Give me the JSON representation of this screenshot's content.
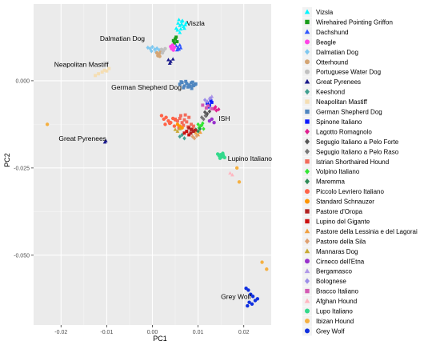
{
  "chart_data": {
    "type": "scatter",
    "xlabel": "PC1",
    "ylabel": "PC2",
    "xlim": [
      -0.026,
      0.026
    ],
    "ylim": [
      -0.07,
      0.022
    ],
    "x_ticks": [
      -0.02,
      -0.01,
      0.0,
      0.01,
      0.02
    ],
    "x_tick_labels": [
      "-0.02",
      "-0.01",
      "0.00",
      "0.01",
      "0.02"
    ],
    "y_ticks": [
      0.0,
      -0.025,
      -0.05
    ],
    "y_tick_labels": [
      "0.000",
      "-0.025",
      "-0.050"
    ],
    "grid": true,
    "legend_position": "right",
    "series": [
      {
        "name": "Vizsla",
        "color": "#00f5ff",
        "shape": "triangle",
        "x": [
          0.0052,
          0.0056,
          0.006,
          0.0064,
          0.0068,
          0.0072,
          0.0055,
          0.0062,
          0.007,
          0.0058,
          0.0066,
          0.006,
          0.0074,
          0.0064
        ],
        "y": [
          0.015,
          0.0165,
          0.0158,
          0.017,
          0.0155,
          0.016,
          0.0145,
          0.0148,
          0.015,
          0.0175,
          0.0172,
          0.0138,
          0.0166,
          0.0162
        ]
      },
      {
        "name": "Wirehaired Pointing Griffon",
        "color": "#1a9d1a",
        "shape": "square",
        "x": [
          0.0046,
          0.005,
          0.0054,
          0.0048,
          0.0052
        ],
        "y": [
          0.0115,
          0.012,
          0.0112,
          0.0108,
          0.0125
        ]
      },
      {
        "name": "Dachshund",
        "color": "#2f57ff",
        "shape": "triangle",
        "x": [
          0.0052,
          0.0056,
          0.006,
          0.0054,
          0.0058,
          0.0062
        ],
        "y": [
          0.01,
          0.0095,
          0.0102,
          0.0088,
          0.009,
          0.0094
        ]
      },
      {
        "name": "Beagle",
        "color": "#ff44e6",
        "shape": "circle",
        "x": [
          0.004,
          0.0044,
          0.0048,
          0.0042,
          0.0046
        ],
        "y": [
          0.0098,
          0.0102,
          0.0096,
          0.0092,
          0.0088
        ]
      },
      {
        "name": "Dalmatian Dog",
        "color": "#7ec8f0",
        "shape": "diamond",
        "x": [
          -0.001,
          -0.0005,
          0.0,
          0.0005,
          0.001,
          0.0015,
          -0.0002,
          0.0008
        ],
        "y": [
          0.0095,
          0.0092,
          0.0097,
          0.009,
          0.0093,
          0.0088,
          0.0085,
          0.0082
        ]
      },
      {
        "name": "Otterhound",
        "color": "#d4a574",
        "shape": "circle",
        "x": [
          0.001,
          0.0014,
          0.0018,
          0.0012,
          0.0016
        ],
        "y": [
          0.008,
          0.0076,
          0.0082,
          0.0072,
          0.007
        ]
      },
      {
        "name": "Portuguese Water Dog",
        "color": "#c0c0c0",
        "shape": "circle",
        "x": [
          0.002,
          0.0024,
          0.0028,
          0.0022
        ],
        "y": [
          0.009,
          0.0086,
          0.0092,
          0.008
        ]
      },
      {
        "name": "Great Pyrenees",
        "color": "#1a1a8c",
        "shape": "triangle",
        "x": [
          0.0035,
          0.004,
          0.0045,
          0.0038,
          -0.0102,
          -0.0104
        ],
        "y": [
          0.006,
          0.0055,
          0.0062,
          0.005,
          -0.0172,
          -0.0176
        ]
      },
      {
        "name": "Keeshond",
        "color": "#40a090",
        "shape": "diamond",
        "x": [
          0.006,
          0.0065,
          0.007
        ],
        "y": [
          -0.016,
          -0.0155,
          -0.0165
        ]
      },
      {
        "name": "Neapolitan Mastiff",
        "color": "#f5deb3",
        "shape": "square",
        "x": [
          -0.0125,
          -0.0118,
          -0.011,
          -0.0105,
          -0.0095,
          -0.01
        ],
        "y": [
          0.0015,
          0.002,
          0.0025,
          0.003,
          0.0035,
          0.0028
        ]
      },
      {
        "name": "German Shepherd Dog",
        "color": "#4f86c0",
        "shape": "square",
        "x": [
          0.006,
          0.0065,
          0.007,
          0.0075,
          0.008,
          0.0085,
          0.009,
          0.0095,
          0.0068,
          0.0078,
          0.0088,
          0.0063,
          0.0073,
          0.0083,
          0.0093,
          0.0086
        ],
        "y": [
          -0.001,
          -0.0005,
          -0.0015,
          -0.0008,
          -0.0012,
          -0.0006,
          -0.0014,
          -0.0009,
          -0.002,
          -0.0018,
          -0.0004,
          -0.0003,
          -0.0002,
          -0.0016,
          -0.0011,
          -0.0022
        ]
      },
      {
        "name": "Spinone Italiano",
        "color": "#0a1aff",
        "shape": "square",
        "x": [
          0.012,
          0.0125,
          0.013,
          0.0122,
          0.0128
        ],
        "y": [
          -0.0065,
          -0.007,
          -0.0062,
          -0.0075,
          -0.0058
        ]
      },
      {
        "name": "Lagotto Romagnolo",
        "color": "#e02090",
        "shape": "diamond",
        "x": [
          0.0135,
          0.014,
          0.0138,
          0.0145
        ],
        "y": [
          -0.008,
          -0.0085,
          -0.0075,
          -0.0082
        ]
      },
      {
        "name": "Segugio Italiano a Pelo Forte",
        "color": "#555555",
        "shape": "diamond",
        "x": [
          0.0115,
          0.012,
          0.0125,
          0.0118
        ],
        "y": [
          -0.009,
          -0.0095,
          -0.0088,
          -0.01
        ]
      },
      {
        "name": "Segugio Italiano a Pelo Raso",
        "color": "#777777",
        "shape": "diamond",
        "x": [
          0.0108,
          0.0112,
          0.0116
        ],
        "y": [
          -0.0105,
          -0.011,
          -0.01
        ]
      },
      {
        "name": "Istrian Shorthaired Hound",
        "color": "#f36b5b",
        "shape": "square",
        "x": [
          0.005,
          0.0055,
          0.006,
          0.0065,
          0.007,
          0.0075,
          0.008,
          0.0085,
          0.009,
          0.0058,
          0.0068,
          0.0078,
          0.0088,
          0.0062,
          0.0072
        ],
        "y": [
          -0.011,
          -0.0115,
          -0.0108,
          -0.012,
          -0.0112,
          -0.0118,
          -0.0105,
          -0.0125,
          -0.013,
          -0.0135,
          -0.0128,
          -0.0132,
          -0.0138,
          -0.01,
          -0.0098
        ]
      },
      {
        "name": "Volpino Italiano",
        "color": "#33e633",
        "shape": "diamond",
        "x": [
          0.01,
          0.0105,
          0.011,
          0.0102,
          0.0108,
          0.0112
        ],
        "y": [
          -0.0125,
          -0.013,
          -0.0122,
          -0.0135,
          -0.0128,
          -0.0138
        ]
      },
      {
        "name": "Maremma",
        "color": "#2e8b57",
        "shape": "diamond",
        "x": [
          0.0095,
          0.01,
          0.0104
        ],
        "y": [
          -0.014,
          -0.0145,
          -0.0138
        ]
      },
      {
        "name": "Piccolo Levriero Italiano",
        "color": "#ff6347",
        "shape": "circle",
        "x": [
          0.002,
          0.0025,
          0.003,
          0.0035,
          0.004,
          0.0045,
          0.005,
          0.0028,
          0.0038,
          0.0048
        ],
        "y": [
          -0.01,
          -0.011,
          -0.0105,
          -0.0115,
          -0.012,
          -0.0108,
          -0.0112,
          -0.0125,
          -0.0122,
          -0.013
        ]
      },
      {
        "name": "Standard Schnauzer",
        "color": "#ff9500",
        "shape": "circle",
        "x": [
          0.0055,
          0.006,
          0.0065
        ],
        "y": [
          -0.0125,
          -0.013,
          -0.0135
        ]
      },
      {
        "name": "Pastore d'Oropa",
        "color": "#b22222",
        "shape": "square",
        "x": [
          0.008,
          0.0085,
          0.009,
          0.0084,
          0.0094
        ],
        "y": [
          -0.0135,
          -0.014,
          -0.0145,
          -0.015,
          -0.0142
        ]
      },
      {
        "name": "Lupino del Gigante",
        "color": "#cc1111",
        "shape": "square",
        "x": [
          0.007,
          0.0075,
          0.008
        ],
        "y": [
          -0.015,
          -0.0145,
          -0.0155
        ]
      },
      {
        "name": "Pastore della Lessinia e del Lagorai",
        "color": "#f0a040",
        "shape": "triangle",
        "x": [
          0.0095,
          0.01,
          0.0105
        ],
        "y": [
          -0.015,
          -0.0155,
          -0.0148
        ]
      },
      {
        "name": "Pastore della Sila",
        "color": "#e0a070",
        "shape": "diamond",
        "x": [
          0.0088,
          0.0092,
          0.0097
        ],
        "y": [
          -0.016,
          -0.0165,
          -0.0158
        ]
      },
      {
        "name": "Mannaras Dog",
        "color": "#c8a832",
        "shape": "triangle",
        "x": [
          0.005,
          0.0055,
          0.006
        ],
        "y": [
          -0.014,
          -0.0145,
          -0.0138
        ]
      },
      {
        "name": "Cirneco dell'Etna",
        "color": "#9932cc",
        "shape": "circle",
        "x": [
          0.0125,
          0.013,
          0.0135
        ],
        "y": [
          -0.0115,
          -0.011,
          -0.012
        ]
      },
      {
        "name": "Bergamasco",
        "color": "#b098e8",
        "shape": "triangle",
        "x": [
          0.0125,
          0.013
        ],
        "y": [
          -0.005,
          -0.0045
        ]
      },
      {
        "name": "Bolognese",
        "color": "#9b8de8",
        "shape": "diamond",
        "x": [
          0.0115,
          0.012,
          0.0128
        ],
        "y": [
          -0.0055,
          -0.006,
          -0.005
        ]
      },
      {
        "name": "Bracco Italiano",
        "color": "#d45ab4",
        "shape": "square",
        "x": [
          0.011,
          0.0118,
          0.0122,
          0.013
        ],
        "y": [
          -0.007,
          -0.0078,
          -0.0072,
          -0.008
        ]
      },
      {
        "name": "Afghan Hound",
        "color": "#ffb6c1",
        "shape": "triangle",
        "x": [
          0.017,
          0.0175
        ],
        "y": [
          -0.0265,
          -0.027
        ]
      },
      {
        "name": "Lupo Italiano",
        "color": "#33d98c",
        "shape": "circle",
        "x": [
          0.0143,
          0.0146,
          0.0149,
          0.0152,
          0.0155,
          0.0158,
          0.0148,
          0.0154
        ],
        "y": [
          -0.021,
          -0.0215,
          -0.0212,
          -0.0218,
          -0.0214,
          -0.022,
          -0.0222,
          -0.0208
        ]
      },
      {
        "name": "Ibizan Hound",
        "color": "#f5b041",
        "shape": "circle",
        "x": [
          0.0185,
          0.024,
          0.025,
          -0.023,
          0.019
        ],
        "y": [
          -0.025,
          -0.052,
          -0.054,
          -0.0125,
          -0.029
        ]
      },
      {
        "name": "Grey Wolf",
        "color": "#1030e0",
        "shape": "circle",
        "x": [
          0.0205,
          0.021,
          0.0215,
          0.022,
          0.0225,
          0.0212,
          0.0218,
          0.023,
          0.0208
        ],
        "y": [
          -0.0595,
          -0.06,
          -0.0612,
          -0.0618,
          -0.063,
          -0.0635,
          -0.064,
          -0.0625,
          -0.0645
        ]
      }
    ],
    "annotations": [
      {
        "text": "Viszla",
        "x": 0.0075,
        "y": 0.0158
      },
      {
        "text": "Dalmatian Dog",
        "x": -0.0115,
        "y": 0.0115
      },
      {
        "text": "Neapolitan Mastiff",
        "x": -0.0215,
        "y": 0.004
      },
      {
        "text": "German Shepherd Dog",
        "x": -0.009,
        "y": -0.0025
      },
      {
        "text": "ISH",
        "x": 0.0145,
        "y": -0.0115
      },
      {
        "text": "Great Pyrenees",
        "x": -0.0205,
        "y": -0.0172
      },
      {
        "text": "Lupino Italiano",
        "x": 0.0165,
        "y": -0.023
      },
      {
        "text": "Grey Wolf",
        "x": 0.015,
        "y": -0.0625
      }
    ]
  }
}
